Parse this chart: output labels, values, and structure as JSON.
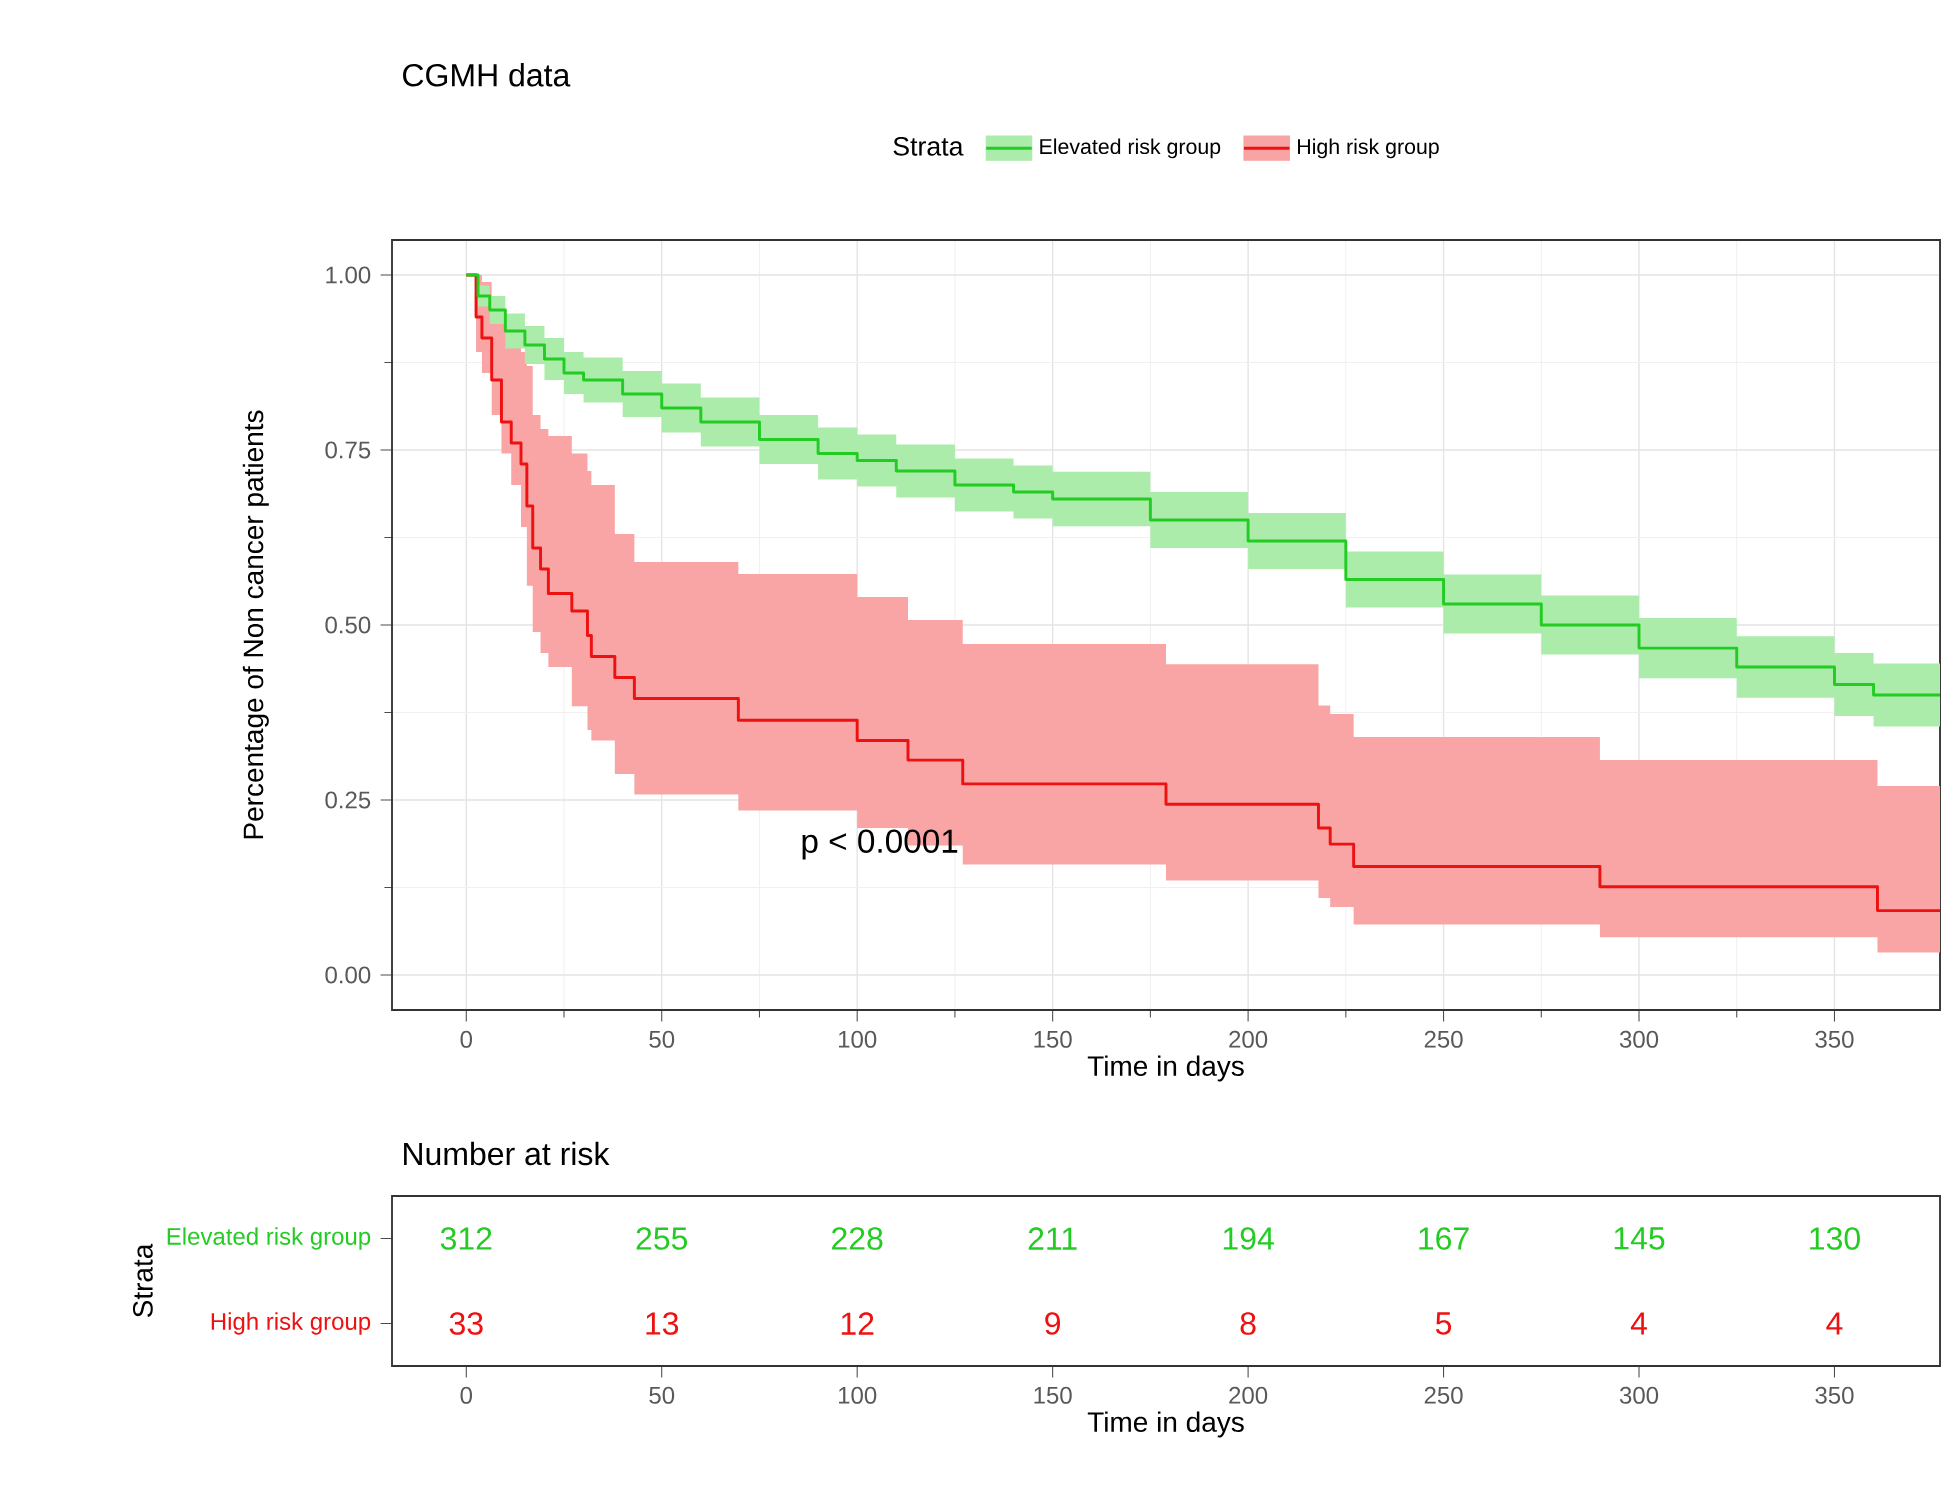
{
  "chart_data": [
    {
      "type": "step",
      "title": "CGMH data",
      "xlabel": "Time in days",
      "ylabel": "Percentage of Non cancer patients",
      "legend_title": "Strata",
      "legend": "top",
      "grid": true,
      "xlim": [
        -19,
        377
      ],
      "ylim": [
        -0.05,
        1.05
      ],
      "xticks": [
        0,
        50,
        100,
        150,
        200,
        250,
        300,
        350
      ],
      "yticks": [
        {
          "value": 0,
          "label": "0.00"
        },
        {
          "value": 0.25,
          "label": "0.25"
        },
        {
          "value": 0.5,
          "label": "0.50"
        },
        {
          "value": 0.75,
          "label": "0.75"
        },
        {
          "value": 1,
          "label": "1.00"
        }
      ],
      "annotations": [
        "p < 0.0001"
      ],
      "series": [
        {
          "name": "Elevated risk group",
          "color": "#22cc22",
          "x": [
            0,
            3,
            6,
            10,
            15,
            20,
            25,
            30,
            40,
            50,
            60,
            75,
            90,
            100,
            110,
            125,
            140,
            150,
            175,
            200,
            225,
            250,
            275,
            300,
            325,
            350,
            360,
            377
          ],
          "values": [
            1,
            0.97,
            0.95,
            0.92,
            0.9,
            0.88,
            0.86,
            0.85,
            0.83,
            0.81,
            0.79,
            0.765,
            0.745,
            0.735,
            0.72,
            0.7,
            0.69,
            0.68,
            0.65,
            0.62,
            0.565,
            0.53,
            0.5,
            0.467,
            0.44,
            0.415,
            0.4,
            0.4
          ],
          "upper": [
            1,
            0.985,
            0.97,
            0.945,
            0.927,
            0.91,
            0.89,
            0.882,
            0.863,
            0.845,
            0.825,
            0.8,
            0.782,
            0.772,
            0.758,
            0.738,
            0.728,
            0.719,
            0.69,
            0.66,
            0.605,
            0.572,
            0.542,
            0.51,
            0.484,
            0.46,
            0.445,
            0.445
          ],
          "lower": [
            1,
            0.955,
            0.93,
            0.895,
            0.873,
            0.85,
            0.83,
            0.818,
            0.797,
            0.775,
            0.755,
            0.73,
            0.708,
            0.698,
            0.682,
            0.662,
            0.652,
            0.641,
            0.61,
            0.58,
            0.525,
            0.488,
            0.458,
            0.424,
            0.396,
            0.37,
            0.355,
            0.355
          ]
        },
        {
          "name": "High risk group",
          "color": "#ee1111",
          "x": [
            0,
            2.5,
            4,
            6.5,
            9,
            11.5,
            14,
            15.5,
            17,
            19,
            21,
            27,
            31,
            32,
            38,
            43,
            69.6,
            100,
            113,
            127,
            179,
            218,
            221,
            227,
            290,
            361,
            377
          ],
          "values": [
            1,
            0.94,
            0.91,
            0.85,
            0.79,
            0.76,
            0.73,
            0.67,
            0.61,
            0.58,
            0.545,
            0.52,
            0.485,
            0.455,
            0.425,
            0.395,
            0.364,
            0.335,
            0.307,
            0.273,
            0.244,
            0.21,
            0.187,
            0.155,
            0.126,
            0.092,
            0.092
          ],
          "upper": [
            1,
            1,
            0.99,
            0.96,
            0.93,
            0.91,
            0.89,
            0.87,
            0.8,
            0.78,
            0.77,
            0.745,
            0.72,
            0.7,
            0.63,
            0.59,
            0.573,
            0.54,
            0.507,
            0.473,
            0.444,
            0.385,
            0.373,
            0.34,
            0.307,
            0.27,
            0.27
          ],
          "lower": [
            1,
            0.89,
            0.86,
            0.8,
            0.745,
            0.7,
            0.64,
            0.556,
            0.49,
            0.46,
            0.44,
            0.384,
            0.35,
            0.335,
            0.287,
            0.258,
            0.235,
            0.21,
            0.185,
            0.158,
            0.135,
            0.11,
            0.097,
            0.072,
            0.054,
            0.032,
            0.032
          ]
        }
      ]
    },
    {
      "type": "heatmap",
      "title": "Number at risk",
      "xlabel": "Time in days",
      "ylabel": "Strata",
      "data_labels": true,
      "categories": [
        "0",
        "50",
        "100",
        "150",
        "200",
        "250",
        "300",
        "350"
      ],
      "y_categories": [
        "Elevated risk group",
        "High risk group"
      ],
      "cells": [
        [
          312,
          255,
          228,
          211,
          194,
          167,
          145,
          130
        ],
        [
          33,
          13,
          12,
          9,
          8,
          5,
          4,
          4
        ]
      ]
    }
  ]
}
